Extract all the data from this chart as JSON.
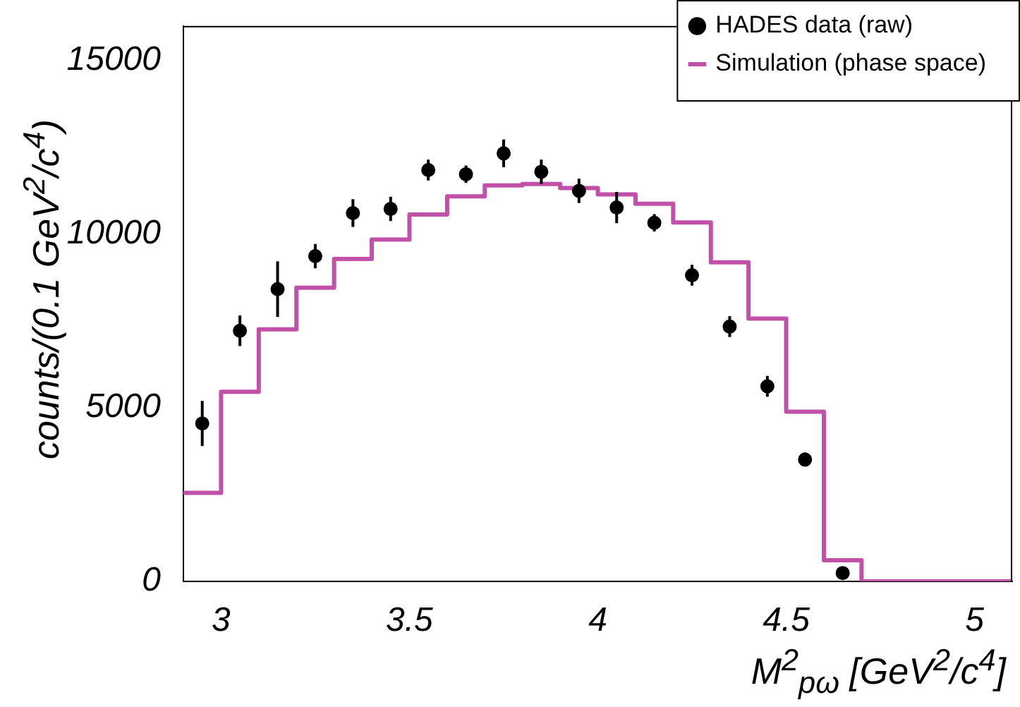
{
  "chart_data": {
    "type": "scatter",
    "xlabel": "M$^{2}$$_{pω}$ [GeV$^{2}$/c$^{4}$]",
    "ylabel": "counts/(0.1 GeV$^{2}$/c$^{4}$)",
    "xlim": [
      2.9,
      5.1
    ],
    "ylim": [
      0,
      16000
    ],
    "xticks": [
      3,
      3.5,
      4,
      4.5,
      5
    ],
    "yticks": [
      0,
      5000,
      10000,
      15000
    ],
    "grid": false,
    "legend": "top right",
    "series": [
      {
        "name": "HADES data (raw)",
        "type": "scatter",
        "marker": "circle",
        "color": "#000000",
        "x": [
          2.95,
          3.05,
          3.15,
          3.25,
          3.35,
          3.45,
          3.55,
          3.65,
          3.75,
          3.85,
          3.95,
          4.05,
          4.15,
          4.25,
          4.35,
          4.45,
          4.55,
          4.65
        ],
        "values": [
          4550,
          7220,
          8420,
          9370,
          10610,
          10730,
          11850,
          11730,
          12330,
          11800,
          11250,
          10770,
          10330,
          8820,
          7340,
          5620,
          3510,
          240
        ],
        "errors": [
          650,
          440,
          800,
          350,
          400,
          350,
          300,
          250,
          400,
          350,
          350,
          450,
          250,
          300,
          300,
          300,
          200,
          null
        ]
      },
      {
        "name": "Simulation (phase space)",
        "type": "step",
        "marker": "none",
        "color": "#c050a8",
        "x": [
          2.9,
          3.0,
          3.1,
          3.2,
          3.3,
          3.4,
          3.5,
          3.6,
          3.7,
          3.8,
          3.9,
          4.0,
          4.1,
          4.2,
          4.3,
          4.4,
          4.5,
          4.6,
          4.7,
          4.8,
          4.9,
          5.0,
          5.1
        ],
        "values": [
          2550,
          5460,
          7260,
          8460,
          9290,
          9850,
          10570,
          11090,
          11410,
          11450,
          11330,
          11150,
          10880,
          10340,
          9190,
          7570,
          4890,
          610,
          0,
          0,
          0,
          0,
          0
        ]
      }
    ]
  }
}
